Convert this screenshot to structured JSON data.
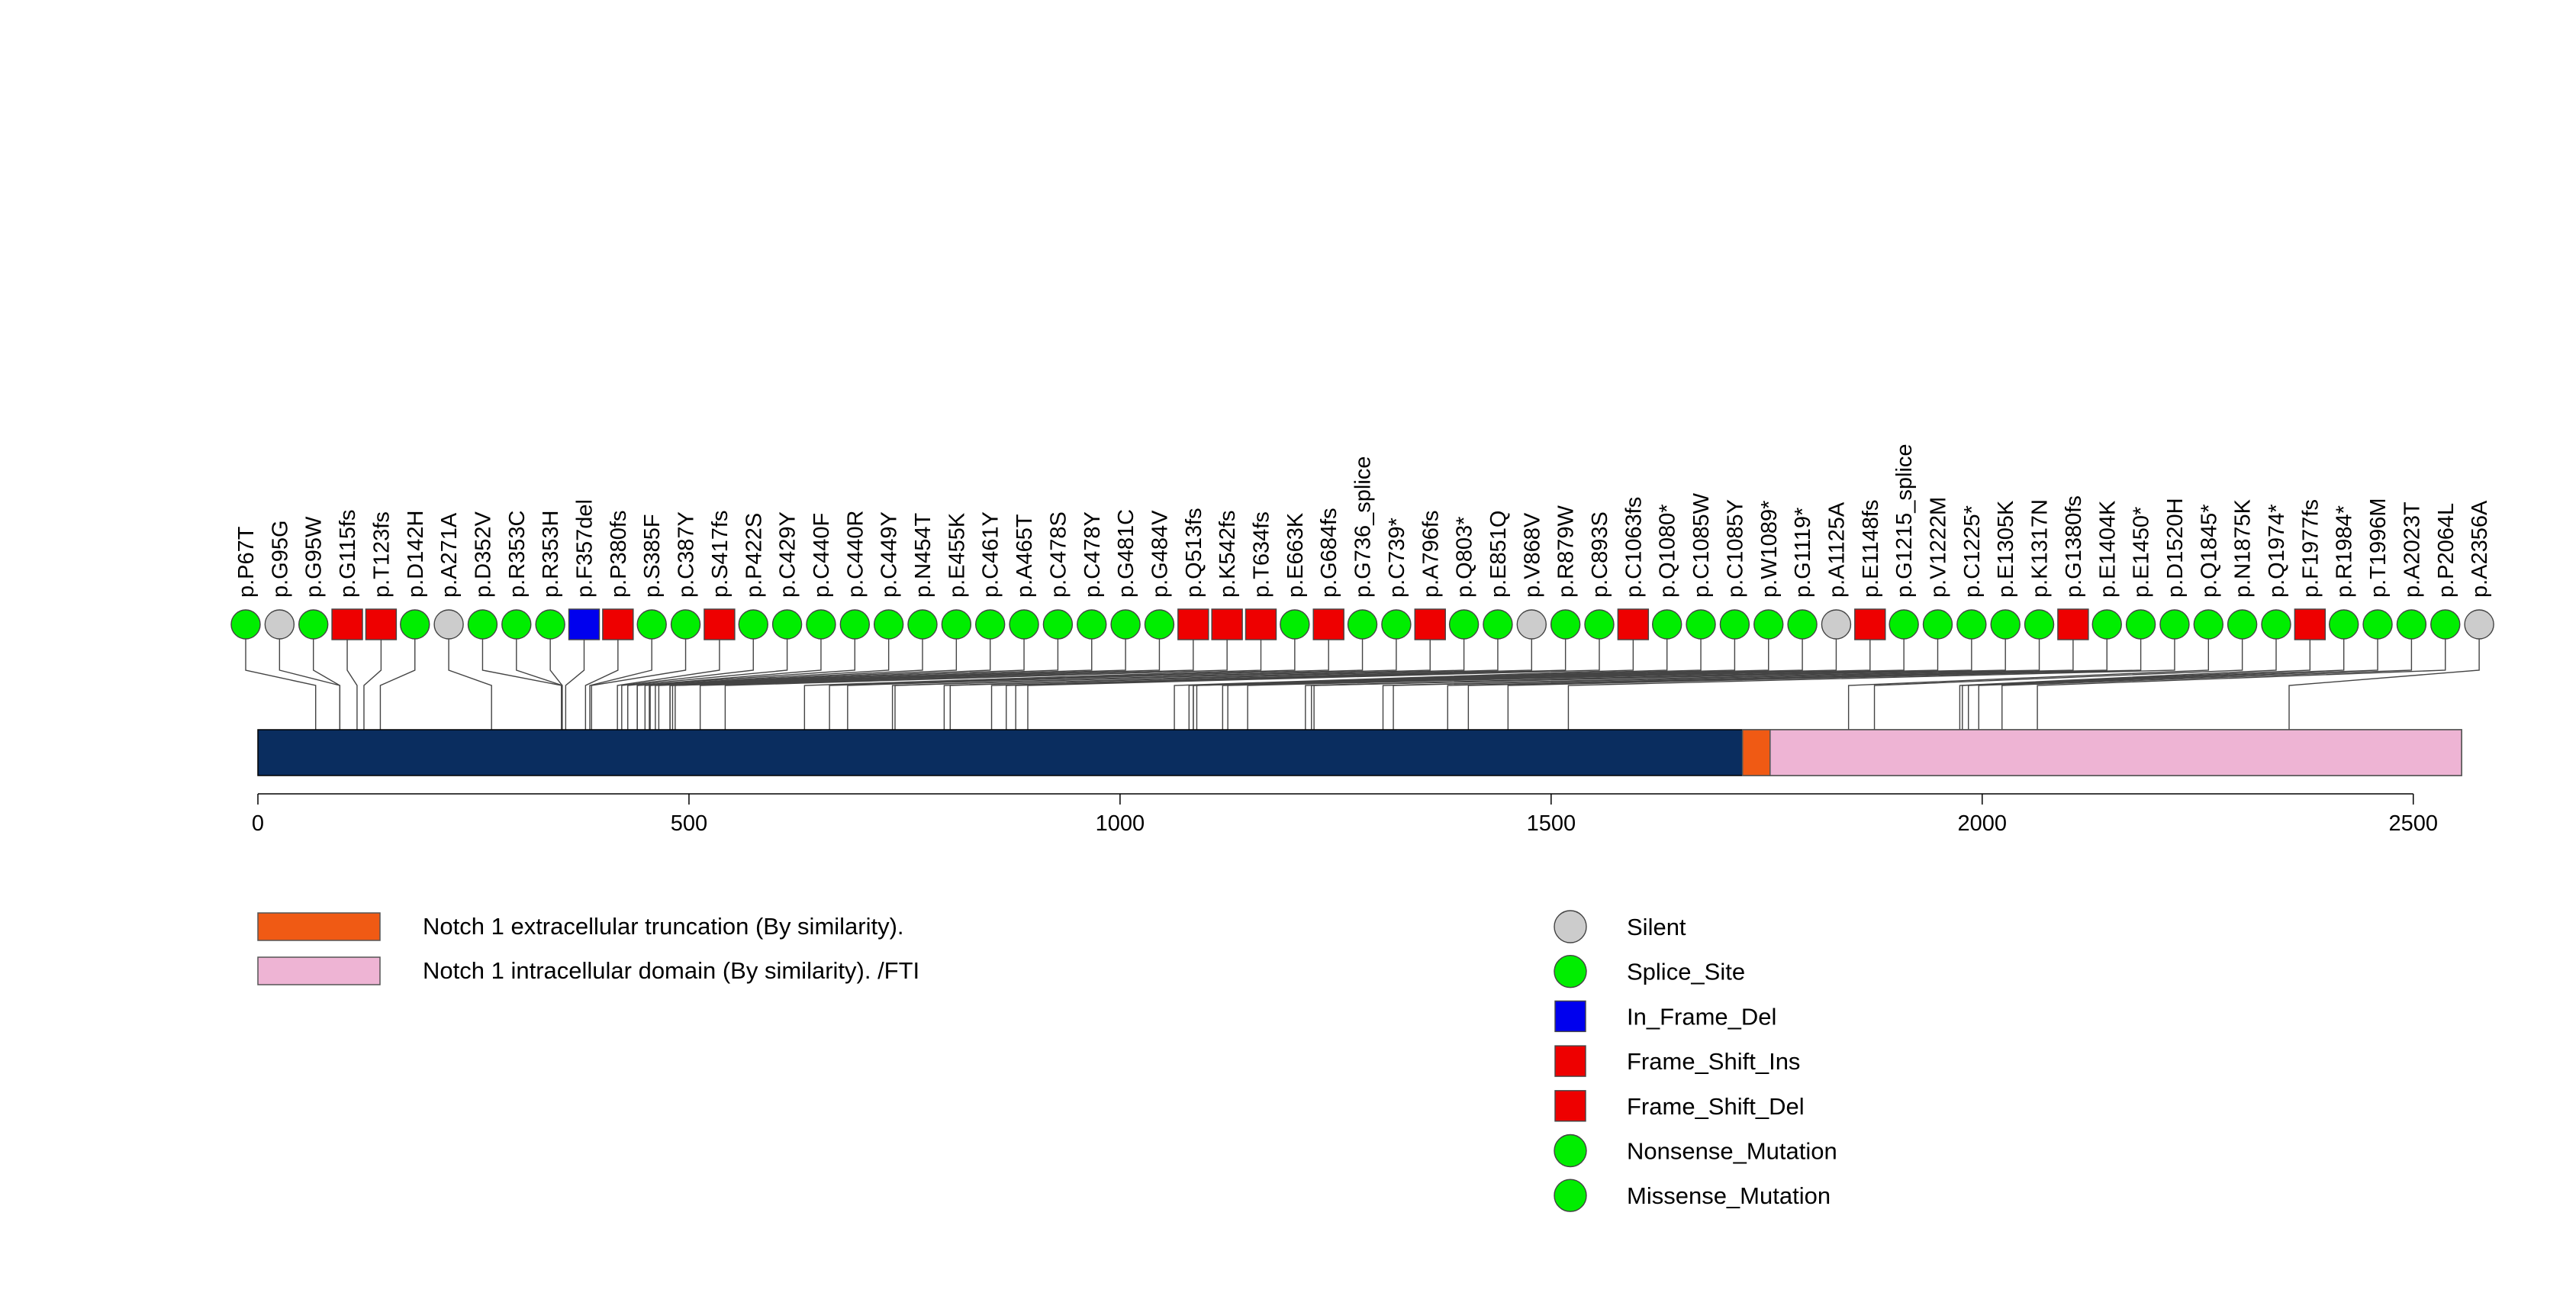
{
  "chart_data": {
    "type": "lollipop",
    "protein_length": 2556,
    "x_ticks": [
      0,
      500,
      1000,
      1500,
      2000,
      2500
    ],
    "domains": [
      {
        "name": "Notch 1 extracellular truncation (By similarity).",
        "start": 1722,
        "end": 1754,
        "color": "#f05a14"
      },
      {
        "name": "Notch 1 intracellular domain (By similarity). /FTI",
        "start": 1754,
        "end": 2556,
        "color": "#eeb4d4"
      }
    ],
    "mutation_types": [
      {
        "name": "Silent",
        "shape": "circle",
        "color": "#cccccc"
      },
      {
        "name": "Splice_Site",
        "shape": "circle",
        "color": "#00ee00"
      },
      {
        "name": "In_Frame_Del",
        "shape": "square",
        "color": "#0000ee"
      },
      {
        "name": "Frame_Shift_Ins",
        "shape": "square",
        "color": "#ee0000"
      },
      {
        "name": "Frame_Shift_Del",
        "shape": "square",
        "color": "#ee0000"
      },
      {
        "name": "Nonsense_Mutation",
        "shape": "circle",
        "color": "#00ee00"
      },
      {
        "name": "Missense_Mutation",
        "shape": "circle",
        "color": "#00ee00"
      }
    ],
    "mutations": [
      {
        "label": "p.P67T",
        "pos": 67,
        "type": "Missense_Mutation"
      },
      {
        "label": "p.G95G",
        "pos": 95,
        "type": "Silent"
      },
      {
        "label": "p.G95W",
        "pos": 95,
        "type": "Missense_Mutation"
      },
      {
        "label": "p.G115fs",
        "pos": 115,
        "type": "Frame_Shift_Del"
      },
      {
        "label": "p.T123fs",
        "pos": 123,
        "type": "Frame_Shift_Del"
      },
      {
        "label": "p.D142H",
        "pos": 142,
        "type": "Missense_Mutation"
      },
      {
        "label": "p.A271A",
        "pos": 271,
        "type": "Silent"
      },
      {
        "label": "p.D352V",
        "pos": 352,
        "type": "Missense_Mutation"
      },
      {
        "label": "p.R353C",
        "pos": 353,
        "type": "Missense_Mutation"
      },
      {
        "label": "p.R353H",
        "pos": 353,
        "type": "Missense_Mutation"
      },
      {
        "label": "p.F357del",
        "pos": 357,
        "type": "In_Frame_Del"
      },
      {
        "label": "p.P380fs",
        "pos": 380,
        "type": "Frame_Shift_Del"
      },
      {
        "label": "p.S385F",
        "pos": 385,
        "type": "Missense_Mutation"
      },
      {
        "label": "p.C387Y",
        "pos": 387,
        "type": "Missense_Mutation"
      },
      {
        "label": "p.S417fs",
        "pos": 417,
        "type": "Frame_Shift_Del"
      },
      {
        "label": "p.P422S",
        "pos": 422,
        "type": "Missense_Mutation"
      },
      {
        "label": "p.C429Y",
        "pos": 429,
        "type": "Missense_Mutation"
      },
      {
        "label": "p.C440F",
        "pos": 440,
        "type": "Missense_Mutation"
      },
      {
        "label": "p.C440R",
        "pos": 440,
        "type": "Missense_Mutation"
      },
      {
        "label": "p.C449Y",
        "pos": 449,
        "type": "Missense_Mutation"
      },
      {
        "label": "p.N454T",
        "pos": 454,
        "type": "Missense_Mutation"
      },
      {
        "label": "p.E455K",
        "pos": 455,
        "type": "Missense_Mutation"
      },
      {
        "label": "p.C461Y",
        "pos": 461,
        "type": "Missense_Mutation"
      },
      {
        "label": "p.A465T",
        "pos": 465,
        "type": "Missense_Mutation"
      },
      {
        "label": "p.C478S",
        "pos": 478,
        "type": "Missense_Mutation"
      },
      {
        "label": "p.C478Y",
        "pos": 478,
        "type": "Missense_Mutation"
      },
      {
        "label": "p.G481C",
        "pos": 481,
        "type": "Missense_Mutation"
      },
      {
        "label": "p.G484V",
        "pos": 484,
        "type": "Missense_Mutation"
      },
      {
        "label": "p.Q513fs",
        "pos": 513,
        "type": "Frame_Shift_Del"
      },
      {
        "label": "p.K542fs",
        "pos": 542,
        "type": "Frame_Shift_Del"
      },
      {
        "label": "p.T634fs",
        "pos": 634,
        "type": "Frame_Shift_Del"
      },
      {
        "label": "p.E663K",
        "pos": 663,
        "type": "Missense_Mutation"
      },
      {
        "label": "p.G684fs",
        "pos": 684,
        "type": "Frame_Shift_Del"
      },
      {
        "label": "p.G736_splice",
        "pos": 736,
        "type": "Splice_Site"
      },
      {
        "label": "p.C739*",
        "pos": 739,
        "type": "Nonsense_Mutation"
      },
      {
        "label": "p.A796fs",
        "pos": 796,
        "type": "Frame_Shift_Del"
      },
      {
        "label": "p.Q803*",
        "pos": 803,
        "type": "Nonsense_Mutation"
      },
      {
        "label": "p.E851Q",
        "pos": 851,
        "type": "Missense_Mutation"
      },
      {
        "label": "p.V868V",
        "pos": 868,
        "type": "Silent"
      },
      {
        "label": "p.R879W",
        "pos": 879,
        "type": "Missense_Mutation"
      },
      {
        "label": "p.C893S",
        "pos": 893,
        "type": "Missense_Mutation"
      },
      {
        "label": "p.C1063fs",
        "pos": 1063,
        "type": "Frame_Shift_Del"
      },
      {
        "label": "p.Q1080*",
        "pos": 1080,
        "type": "Nonsense_Mutation"
      },
      {
        "label": "p.C1085W",
        "pos": 1085,
        "type": "Missense_Mutation"
      },
      {
        "label": "p.C1085Y",
        "pos": 1085,
        "type": "Missense_Mutation"
      },
      {
        "label": "p.W1089*",
        "pos": 1089,
        "type": "Nonsense_Mutation"
      },
      {
        "label": "p.G1119*",
        "pos": 1119,
        "type": "Nonsense_Mutation"
      },
      {
        "label": "p.A1125A",
        "pos": 1125,
        "type": "Silent"
      },
      {
        "label": "p.E1148fs",
        "pos": 1148,
        "type": "Frame_Shift_Del"
      },
      {
        "label": "p.G1215_splice",
        "pos": 1215,
        "type": "Splice_Site"
      },
      {
        "label": "p.V1222M",
        "pos": 1222,
        "type": "Missense_Mutation"
      },
      {
        "label": "p.C1225*",
        "pos": 1225,
        "type": "Nonsense_Mutation"
      },
      {
        "label": "p.E1305K",
        "pos": 1305,
        "type": "Missense_Mutation"
      },
      {
        "label": "p.K1317N",
        "pos": 1317,
        "type": "Missense_Mutation"
      },
      {
        "label": "p.G1380fs",
        "pos": 1380,
        "type": "Frame_Shift_Del"
      },
      {
        "label": "p.E1404K",
        "pos": 1404,
        "type": "Missense_Mutation"
      },
      {
        "label": "p.E1450*",
        "pos": 1450,
        "type": "Nonsense_Mutation"
      },
      {
        "label": "p.D1520H",
        "pos": 1520,
        "type": "Missense_Mutation"
      },
      {
        "label": "p.Q1845*",
        "pos": 1845,
        "type": "Nonsense_Mutation"
      },
      {
        "label": "p.N1875K",
        "pos": 1875,
        "type": "Missense_Mutation"
      },
      {
        "label": "p.Q1974*",
        "pos": 1974,
        "type": "Nonsense_Mutation"
      },
      {
        "label": "p.F1977fs",
        "pos": 1977,
        "type": "Frame_Shift_Del"
      },
      {
        "label": "p.R1984*",
        "pos": 1984,
        "type": "Nonsense_Mutation"
      },
      {
        "label": "p.T1996M",
        "pos": 1996,
        "type": "Missense_Mutation"
      },
      {
        "label": "p.A2023T",
        "pos": 2023,
        "type": "Missense_Mutation"
      },
      {
        "label": "p.P2064L",
        "pos": 2064,
        "type": "Missense_Mutation"
      },
      {
        "label": "p.A2356A",
        "pos": 2356,
        "type": "Silent"
      }
    ]
  }
}
